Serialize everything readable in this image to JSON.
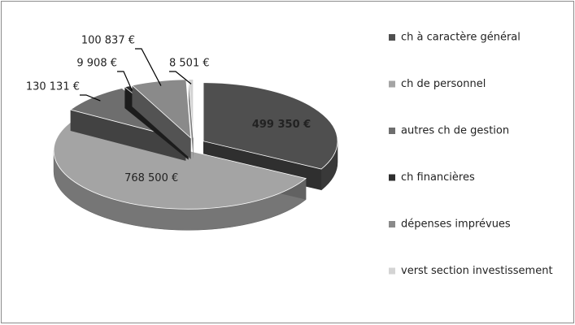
{
  "chart_data": {
    "type": "pie3d",
    "categories": [
      "ch à caractère général",
      "ch de personnel",
      "autres ch de gestion",
      "ch financières",
      "dépenses imprévues",
      "verst section investissement"
    ],
    "values": [
      499350,
      768500,
      130131,
      9908,
      100837,
      8501
    ],
    "value_labels": [
      "499 350 €",
      "768 500 €",
      "130 131 €",
      "9 908 €",
      "100 837 €",
      "8 501 €"
    ],
    "colors": [
      "#4f4f4f",
      "#a4a4a4",
      "#6e6e6e",
      "#2e2e2e",
      "#8a8a8a",
      "#d4d4d4"
    ],
    "legend": "right"
  }
}
